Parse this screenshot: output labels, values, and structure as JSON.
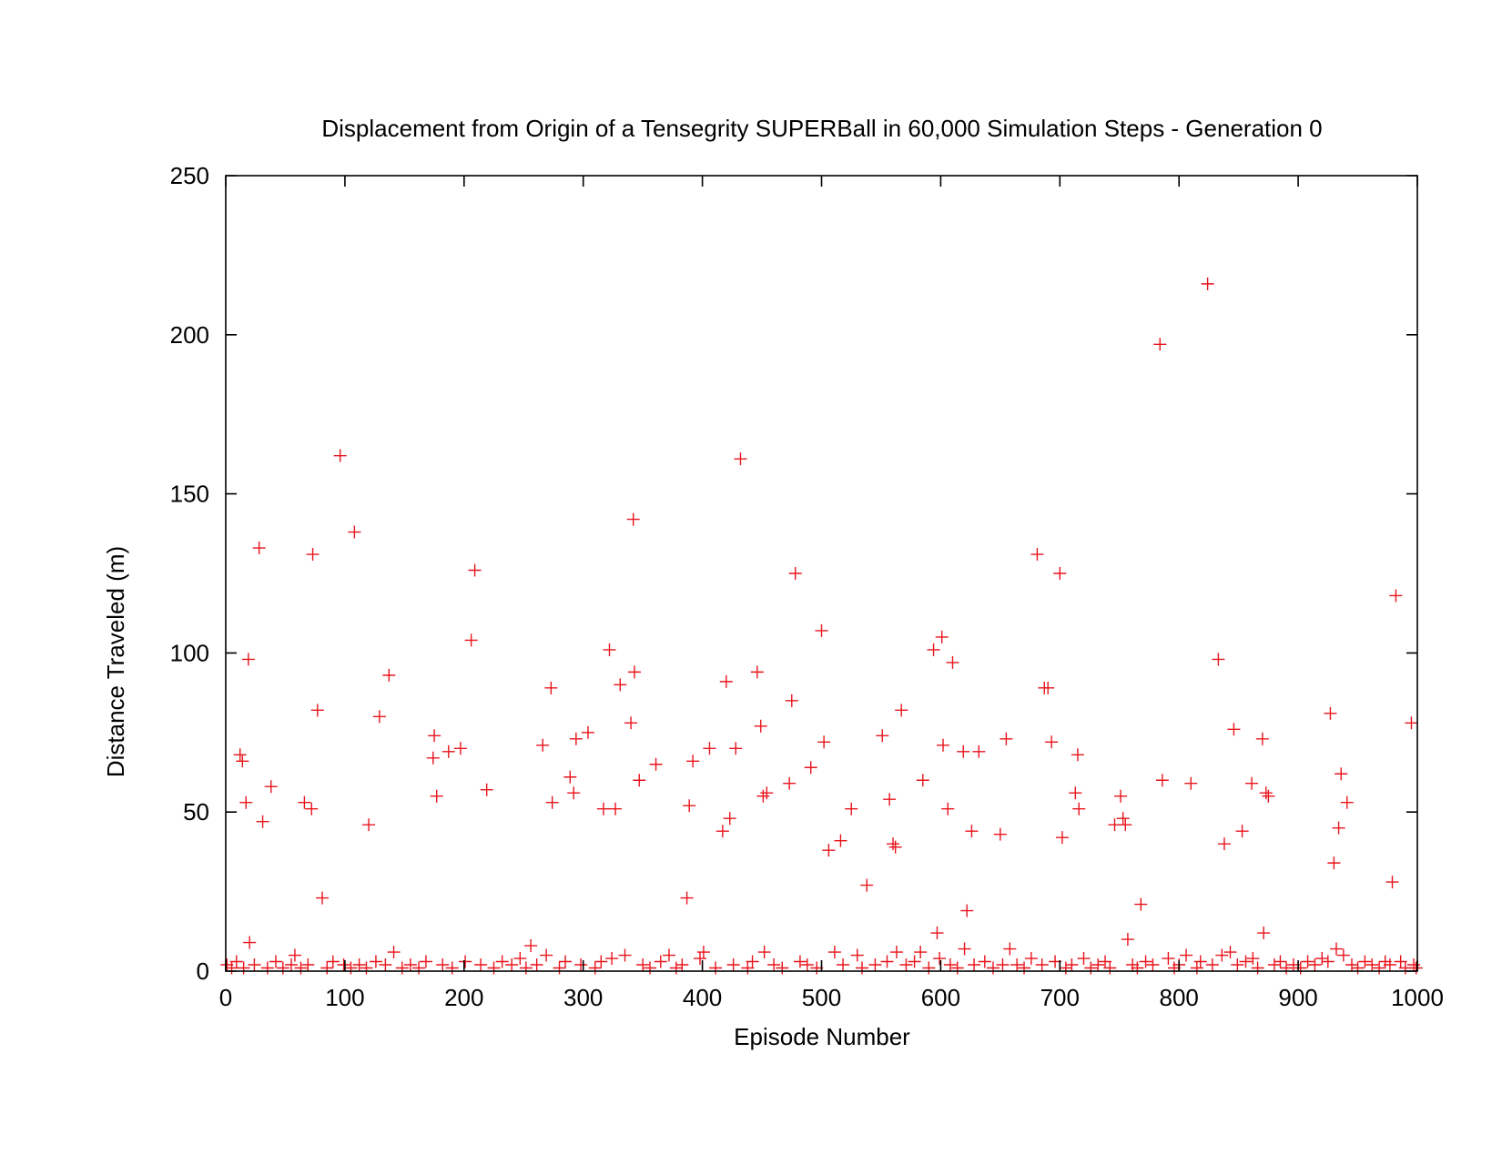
{
  "chart_data": {
    "type": "scatter",
    "title": "Displacement from Origin of a Tensegrity SUPERBall in 60,000 Simulation Steps - Generation 0",
    "xlabel": "Episode Number",
    "ylabel": "Distance Traveled (m)",
    "xlim": [
      0,
      1000
    ],
    "ylim": [
      0,
      250
    ],
    "xticks": [
      "0",
      "100",
      "200",
      "300",
      "400",
      "500",
      "600",
      "700",
      "800",
      "900",
      "1000"
    ],
    "yticks": [
      "0",
      "50",
      "100",
      "150",
      "200",
      "250"
    ],
    "grid": false,
    "legend": "none",
    "marker": "plus",
    "color": "#e8141c",
    "series": [
      {
        "points": [
          [
            12,
            68
          ],
          [
            14,
            66
          ],
          [
            17,
            53
          ],
          [
            19,
            98
          ],
          [
            20,
            9
          ],
          [
            28,
            133
          ],
          [
            31,
            47
          ],
          [
            38,
            58
          ],
          [
            66,
            53
          ],
          [
            72,
            51
          ],
          [
            73,
            131
          ],
          [
            77,
            82
          ],
          [
            81,
            23
          ],
          [
            96,
            162
          ],
          [
            108,
            138
          ],
          [
            120,
            46
          ],
          [
            129,
            80
          ],
          [
            137,
            93
          ],
          [
            175,
            74
          ],
          [
            174,
            67
          ],
          [
            177,
            55
          ],
          [
            187,
            69
          ],
          [
            197,
            70
          ],
          [
            206,
            104
          ],
          [
            209,
            126
          ],
          [
            219,
            57
          ],
          [
            256,
            8
          ],
          [
            266,
            71
          ],
          [
            273,
            89
          ],
          [
            274,
            53
          ],
          [
            289,
            61
          ],
          [
            292,
            56
          ],
          [
            294,
            73
          ],
          [
            304,
            75
          ],
          [
            317,
            51
          ],
          [
            322,
            101
          ],
          [
            327,
            51
          ],
          [
            331,
            90
          ],
          [
            340,
            78
          ],
          [
            342,
            142
          ],
          [
            343,
            94
          ],
          [
            347,
            60
          ],
          [
            361,
            65
          ],
          [
            387,
            23
          ],
          [
            389,
            52
          ],
          [
            392,
            66
          ],
          [
            406,
            70
          ],
          [
            417,
            44
          ],
          [
            420,
            91
          ],
          [
            423,
            48
          ],
          [
            428,
            70
          ],
          [
            432,
            161
          ],
          [
            446,
            94
          ],
          [
            449,
            77
          ],
          [
            451,
            55
          ],
          [
            454,
            56
          ],
          [
            473,
            59
          ],
          [
            475,
            85
          ],
          [
            478,
            125
          ],
          [
            491,
            64
          ],
          [
            500,
            107
          ],
          [
            502,
            72
          ],
          [
            506,
            38
          ],
          [
            516,
            41
          ],
          [
            525,
            51
          ],
          [
            538,
            27
          ],
          [
            551,
            74
          ],
          [
            557,
            54
          ],
          [
            560,
            40
          ],
          [
            562,
            39
          ],
          [
            567,
            82
          ],
          [
            585,
            60
          ],
          [
            594,
            101
          ],
          [
            597,
            12
          ],
          [
            601,
            105
          ],
          [
            602,
            71
          ],
          [
            606,
            51
          ],
          [
            610,
            97
          ],
          [
            619,
            69
          ],
          [
            622,
            19
          ],
          [
            626,
            44
          ],
          [
            632,
            69
          ],
          [
            650,
            43
          ],
          [
            655,
            73
          ],
          [
            681,
            131
          ],
          [
            687,
            89
          ],
          [
            690,
            89
          ],
          [
            693,
            72
          ],
          [
            700,
            125
          ],
          [
            702,
            42
          ],
          [
            713,
            56
          ],
          [
            715,
            68
          ],
          [
            716,
            51
          ],
          [
            746,
            46
          ],
          [
            751,
            55
          ],
          [
            753,
            48
          ],
          [
            755,
            46
          ],
          [
            757,
            10
          ],
          [
            768,
            21
          ],
          [
            784,
            197
          ],
          [
            786,
            60
          ],
          [
            810,
            59
          ],
          [
            824,
            216
          ],
          [
            833,
            98
          ],
          [
            838,
            40
          ],
          [
            846,
            76
          ],
          [
            853,
            44
          ],
          [
            861,
            59
          ],
          [
            870,
            73
          ],
          [
            871,
            12
          ],
          [
            873,
            56
          ],
          [
            875,
            55
          ],
          [
            927,
            81
          ],
          [
            930,
            34
          ],
          [
            934,
            45
          ],
          [
            936,
            62
          ],
          [
            941,
            53
          ],
          [
            979,
            28
          ],
          [
            982,
            118
          ],
          [
            995,
            78
          ],
          [
            1,
            2
          ],
          [
            5,
            1
          ],
          [
            9,
            3
          ],
          [
            15,
            1
          ],
          [
            24,
            2
          ],
          [
            35,
            1
          ],
          [
            42,
            3
          ],
          [
            48,
            1
          ],
          [
            55,
            2
          ],
          [
            58,
            5
          ],
          [
            63,
            1
          ],
          [
            69,
            2
          ],
          [
            85,
            1
          ],
          [
            90,
            3
          ],
          [
            99,
            2
          ],
          [
            105,
            1
          ],
          [
            112,
            2
          ],
          [
            118,
            1
          ],
          [
            126,
            3
          ],
          [
            134,
            2
          ],
          [
            141,
            6
          ],
          [
            148,
            1
          ],
          [
            155,
            2
          ],
          [
            162,
            1
          ],
          [
            168,
            3
          ],
          [
            182,
            2
          ],
          [
            190,
            1
          ],
          [
            201,
            3
          ],
          [
            214,
            2
          ],
          [
            225,
            1
          ],
          [
            232,
            3
          ],
          [
            240,
            2
          ],
          [
            247,
            4
          ],
          [
            252,
            1
          ],
          [
            261,
            2
          ],
          [
            269,
            5
          ],
          [
            280,
            1
          ],
          [
            285,
            3
          ],
          [
            298,
            2
          ],
          [
            310,
            1
          ],
          [
            315,
            3
          ],
          [
            324,
            4
          ],
          [
            335,
            5
          ],
          [
            350,
            2
          ],
          [
            356,
            1
          ],
          [
            365,
            3
          ],
          [
            372,
            5
          ],
          [
            378,
            1
          ],
          [
            383,
            2
          ],
          [
            398,
            4
          ],
          [
            401,
            6
          ],
          [
            411,
            1
          ],
          [
            426,
            2
          ],
          [
            438,
            1
          ],
          [
            442,
            3
          ],
          [
            452,
            6
          ],
          [
            460,
            2
          ],
          [
            467,
            1
          ],
          [
            482,
            3
          ],
          [
            488,
            2
          ],
          [
            496,
            1
          ],
          [
            511,
            6
          ],
          [
            518,
            2
          ],
          [
            530,
            5
          ],
          [
            534,
            1
          ],
          [
            545,
            2
          ],
          [
            555,
            3
          ],
          [
            563,
            6
          ],
          [
            571,
            2
          ],
          [
            578,
            3
          ],
          [
            583,
            6
          ],
          [
            590,
            1
          ],
          [
            599,
            4
          ],
          [
            608,
            2
          ],
          [
            614,
            1
          ],
          [
            620,
            7
          ],
          [
            628,
            2
          ],
          [
            637,
            3
          ],
          [
            644,
            1
          ],
          [
            652,
            2
          ],
          [
            658,
            7
          ],
          [
            664,
            2
          ],
          [
            670,
            1
          ],
          [
            676,
            4
          ],
          [
            685,
            2
          ],
          [
            696,
            3
          ],
          [
            705,
            1
          ],
          [
            710,
            2
          ],
          [
            720,
            4
          ],
          [
            726,
            1
          ],
          [
            732,
            2
          ],
          [
            738,
            3
          ],
          [
            742,
            1
          ],
          [
            761,
            2
          ],
          [
            765,
            1
          ],
          [
            772,
            3
          ],
          [
            778,
            2
          ],
          [
            791,
            4
          ],
          [
            796,
            1
          ],
          [
            800,
            2
          ],
          [
            806,
            5
          ],
          [
            815,
            1
          ],
          [
            818,
            3
          ],
          [
            828,
            2
          ],
          [
            836,
            5
          ],
          [
            843,
            6
          ],
          [
            849,
            2
          ],
          [
            856,
            3
          ],
          [
            862,
            4
          ],
          [
            866,
            1
          ],
          [
            880,
            2
          ],
          [
            885,
            3
          ],
          [
            890,
            1
          ],
          [
            896,
            2
          ],
          [
            902,
            1
          ],
          [
            908,
            3
          ],
          [
            914,
            2
          ],
          [
            920,
            4
          ],
          [
            925,
            3
          ],
          [
            932,
            7
          ],
          [
            938,
            5
          ],
          [
            945,
            2
          ],
          [
            950,
            1
          ],
          [
            956,
            3
          ],
          [
            962,
            2
          ],
          [
            968,
            1
          ],
          [
            973,
            3
          ],
          [
            977,
            2
          ],
          [
            986,
            3
          ],
          [
            990,
            1
          ],
          [
            997,
            2
          ],
          [
            999,
            1
          ]
        ]
      }
    ]
  }
}
